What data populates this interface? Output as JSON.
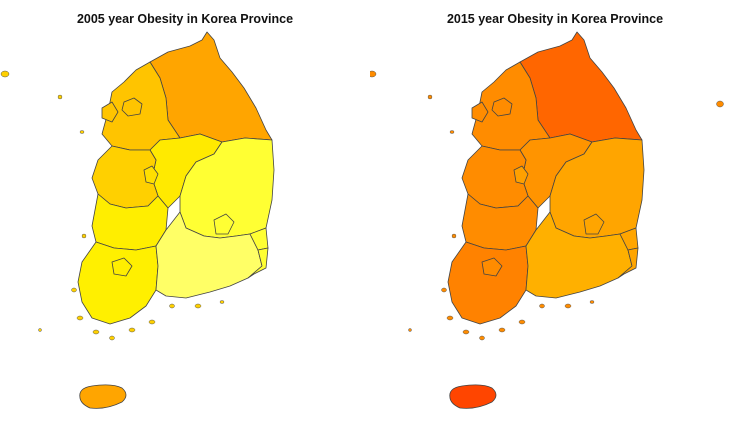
{
  "maps": [
    {
      "title": "2005 year Obesity in Korea Province",
      "regions": {
        "gangwon": "#FFA500",
        "gyeonggi": "#FFC400",
        "seoul": "#FFC400",
        "incheon": "#FFC400",
        "chungnam": "#FFD000",
        "daejeon": "#FFDF00",
        "chungbuk": "#FFEA00",
        "gyeongbuk": "#FFFF33",
        "daegu": "#FFFF33",
        "jeonbuk": "#FFEE00",
        "jeonnam": "#FFF000",
        "gwangju": "#FFEE00",
        "gyeongnam": "#FFFF66",
        "ulsan": "#FFFF33",
        "busan": "#FFFF33",
        "jeju": "#FFA500",
        "islands": "#FFD000"
      }
    },
    {
      "title": "2015 year Obesity in Korea Province",
      "regions": {
        "gangwon": "#FF6600",
        "gyeonggi": "#FF8C00",
        "seoul": "#FF8C00",
        "incheon": "#FF8C00",
        "chungnam": "#FF8C00",
        "daejeon": "#FFA000",
        "chungbuk": "#FF9400",
        "gyeongbuk": "#FFA500",
        "daegu": "#FFA500",
        "jeonbuk": "#FF8C00",
        "jeonnam": "#FF8200",
        "gwangju": "#FF8C00",
        "gyeongnam": "#FFB000",
        "ulsan": "#FFA500",
        "busan": "#FFA500",
        "jeju": "#FF4500",
        "islands": "#FF8C00"
      }
    }
  ]
}
